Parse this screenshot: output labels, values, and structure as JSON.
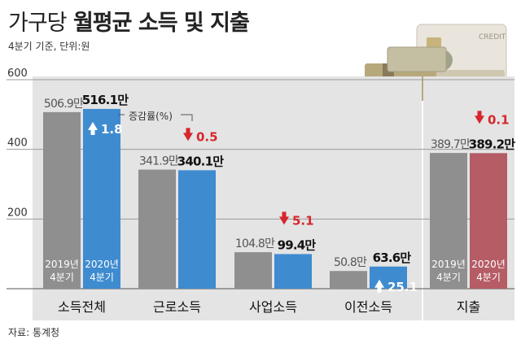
{
  "header": {
    "title_light": "가구당",
    "title_bold": "월평균 소득 및 지출",
    "subtitle": "4분기 기준, 단위:원"
  },
  "source": "자료: 통계청",
  "colors": {
    "bar_2019": "#8f8f8f",
    "bar_2020": "#3f8bd0",
    "bar_2020_spending": "#b55c65",
    "panel_bg": "#e4e4e4",
    "arrow_up": "#ffffff",
    "arrow_down": "#d7262d"
  },
  "chart_data": {
    "type": "bar",
    "ylim": [
      0,
      600
    ],
    "yticks": [
      200,
      400,
      600
    ],
    "grid": true,
    "legend_note": "증감률(%)",
    "series_labels": {
      "year2019": [
        "2019년",
        "4분기"
      ],
      "year2020": [
        "2020년",
        "4분기"
      ]
    },
    "categories": [
      "소득전체",
      "근로소득",
      "사업소득",
      "이전소득",
      "지출"
    ],
    "series": [
      {
        "name": "2019년 4분기",
        "values": [
          506.9,
          341.9,
          104.8,
          50.8,
          389.7
        ],
        "labels": [
          "506.9만",
          "341.9만",
          "104.8만",
          "50.8만",
          "389.7만"
        ]
      },
      {
        "name": "2020년 4분기",
        "values": [
          516.1,
          340.1,
          99.4,
          63.6,
          389.2
        ],
        "labels": [
          "516.1만",
          "340.1만",
          "99.4만",
          "63.6만",
          "389.2만"
        ]
      }
    ],
    "change_rate": {
      "values": [
        1.8,
        0.5,
        5.1,
        25.1,
        0.1
      ],
      "direction": [
        "up",
        "down",
        "down",
        "up",
        "down"
      ]
    }
  }
}
